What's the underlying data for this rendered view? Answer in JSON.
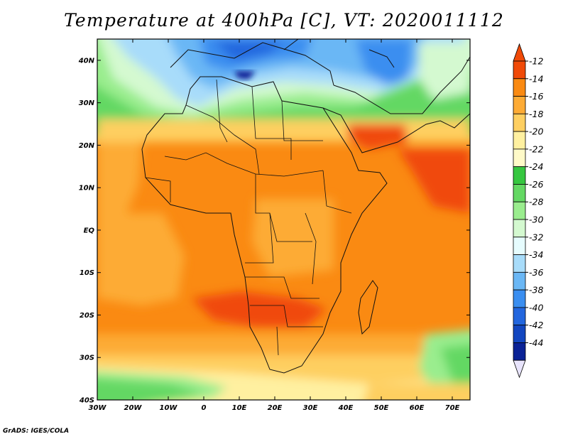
{
  "title": "Temperature at 400hPa [C], VT: 2020011112",
  "credit": "GrADS: IGES/COLA",
  "map": {
    "lon_range": [
      -30,
      75
    ],
    "lat_range": [
      -40,
      45
    ],
    "lon_ticks": [
      {
        "value": -30,
        "label": "30W"
      },
      {
        "value": -20,
        "label": "20W"
      },
      {
        "value": -10,
        "label": "10W"
      },
      {
        "value": 0,
        "label": "0"
      },
      {
        "value": 10,
        "label": "10E"
      },
      {
        "value": 20,
        "label": "20E"
      },
      {
        "value": 30,
        "label": "30E"
      },
      {
        "value": 40,
        "label": "40E"
      },
      {
        "value": 50,
        "label": "50E"
      },
      {
        "value": 60,
        "label": "60E"
      },
      {
        "value": 70,
        "label": "70E"
      }
    ],
    "lat_ticks": [
      {
        "value": 40,
        "label": "40N"
      },
      {
        "value": 30,
        "label": "30N"
      },
      {
        "value": 20,
        "label": "20N"
      },
      {
        "value": 10,
        "label": "10N"
      },
      {
        "value": 0,
        "label": "EQ"
      },
      {
        "value": -10,
        "label": "10S"
      },
      {
        "value": -20,
        "label": "20S"
      },
      {
        "value": -30,
        "label": "30S"
      },
      {
        "value": -40,
        "label": "40S"
      }
    ]
  },
  "colorbar": {
    "labels": [
      "-12",
      "-14",
      "-16",
      "-18",
      "-20",
      "-22",
      "-24",
      "-26",
      "-28",
      "-30",
      "-32",
      "-34",
      "-36",
      "-38",
      "-40",
      "-42",
      "-44"
    ],
    "colors": [
      "#f04a08",
      "#fa8a12",
      "#fdab35",
      "#fecf61",
      "#fff0a0",
      "#fffac8",
      "#36c740",
      "#64d863",
      "#9aed8e",
      "#d4f9d0",
      "#e6fcfe",
      "#a8dcfa",
      "#6ab7f5",
      "#3a8ef0",
      "#2266de",
      "#1246c0",
      "#0a2296",
      "#060e62"
    ]
  }
}
